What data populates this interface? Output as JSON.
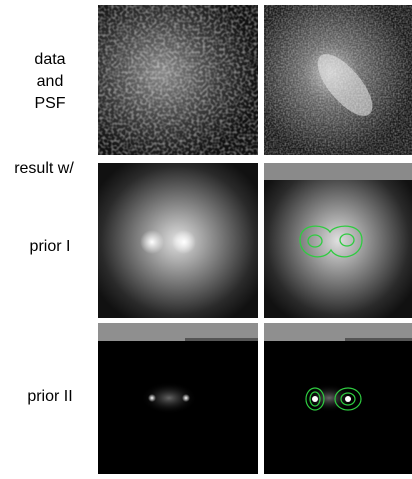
{
  "rows": [
    {
      "label": [
        "data",
        "and",
        "PSF"
      ]
    },
    {
      "label": [
        "result w/",
        "prior I"
      ]
    },
    {
      "label": [
        "prior II"
      ]
    }
  ]
}
